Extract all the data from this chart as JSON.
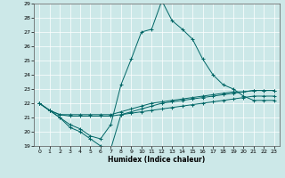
{
  "xlabel": "Humidex (Indice chaleur)",
  "xlim": [
    -0.5,
    23.5
  ],
  "ylim": [
    19,
    29
  ],
  "yticks": [
    19,
    20,
    21,
    22,
    23,
    24,
    25,
    26,
    27,
    28,
    29
  ],
  "xticks": [
    0,
    1,
    2,
    3,
    4,
    5,
    6,
    7,
    8,
    9,
    10,
    11,
    12,
    13,
    14,
    15,
    16,
    17,
    18,
    19,
    20,
    21,
    22,
    23
  ],
  "bg_color": "#cce8e8",
  "line_color": "#006666",
  "lines": [
    {
      "x": [
        0,
        1,
        2,
        3,
        4,
        5,
        6,
        7,
        8,
        9,
        10,
        11,
        12,
        13,
        14,
        15,
        16,
        17,
        18,
        19,
        20,
        21,
        22,
        23
      ],
      "y": [
        22,
        21.5,
        21.2,
        21.1,
        21.1,
        21.1,
        21.1,
        21.1,
        21.2,
        21.3,
        21.4,
        21.5,
        21.6,
        21.7,
        21.8,
        21.9,
        22.0,
        22.1,
        22.2,
        22.3,
        22.4,
        22.5,
        22.5,
        22.5
      ]
    },
    {
      "x": [
        0,
        1,
        2,
        3,
        4,
        5,
        6,
        7,
        8,
        9,
        10,
        11,
        12,
        13,
        14,
        15,
        16,
        17,
        18,
        19,
        20,
        21,
        22,
        23
      ],
      "y": [
        22,
        21.5,
        21.2,
        21.2,
        21.2,
        21.2,
        21.2,
        21.2,
        21.4,
        21.6,
        21.8,
        22.0,
        22.1,
        22.2,
        22.3,
        22.4,
        22.5,
        22.6,
        22.7,
        22.8,
        22.8,
        22.9,
        22.9,
        22.9
      ]
    },
    {
      "x": [
        0,
        1,
        2,
        3,
        4,
        5,
        6,
        7,
        8,
        9,
        10,
        11,
        12,
        13,
        14,
        15,
        16,
        17,
        18,
        19,
        20,
        21,
        22,
        23
      ],
      "y": [
        22,
        21.5,
        21.0,
        20.3,
        20.0,
        19.5,
        19.0,
        18.8,
        21.2,
        21.4,
        21.6,
        21.8,
        22.0,
        22.1,
        22.2,
        22.3,
        22.4,
        22.5,
        22.6,
        22.7,
        22.8,
        22.9,
        22.9,
        22.9
      ]
    },
    {
      "x": [
        0,
        1,
        2,
        3,
        4,
        5,
        6,
        7,
        8,
        9,
        10,
        11,
        12,
        13,
        14,
        15,
        16,
        17,
        18,
        19,
        20,
        21,
        22,
        23
      ],
      "y": [
        22,
        21.5,
        21.0,
        20.5,
        20.2,
        19.7,
        19.5,
        20.5,
        23.3,
        25.1,
        27.0,
        27.2,
        29.2,
        27.8,
        27.2,
        26.5,
        25.1,
        24.0,
        23.3,
        23.0,
        22.5,
        22.2,
        22.2,
        22.2
      ]
    }
  ]
}
